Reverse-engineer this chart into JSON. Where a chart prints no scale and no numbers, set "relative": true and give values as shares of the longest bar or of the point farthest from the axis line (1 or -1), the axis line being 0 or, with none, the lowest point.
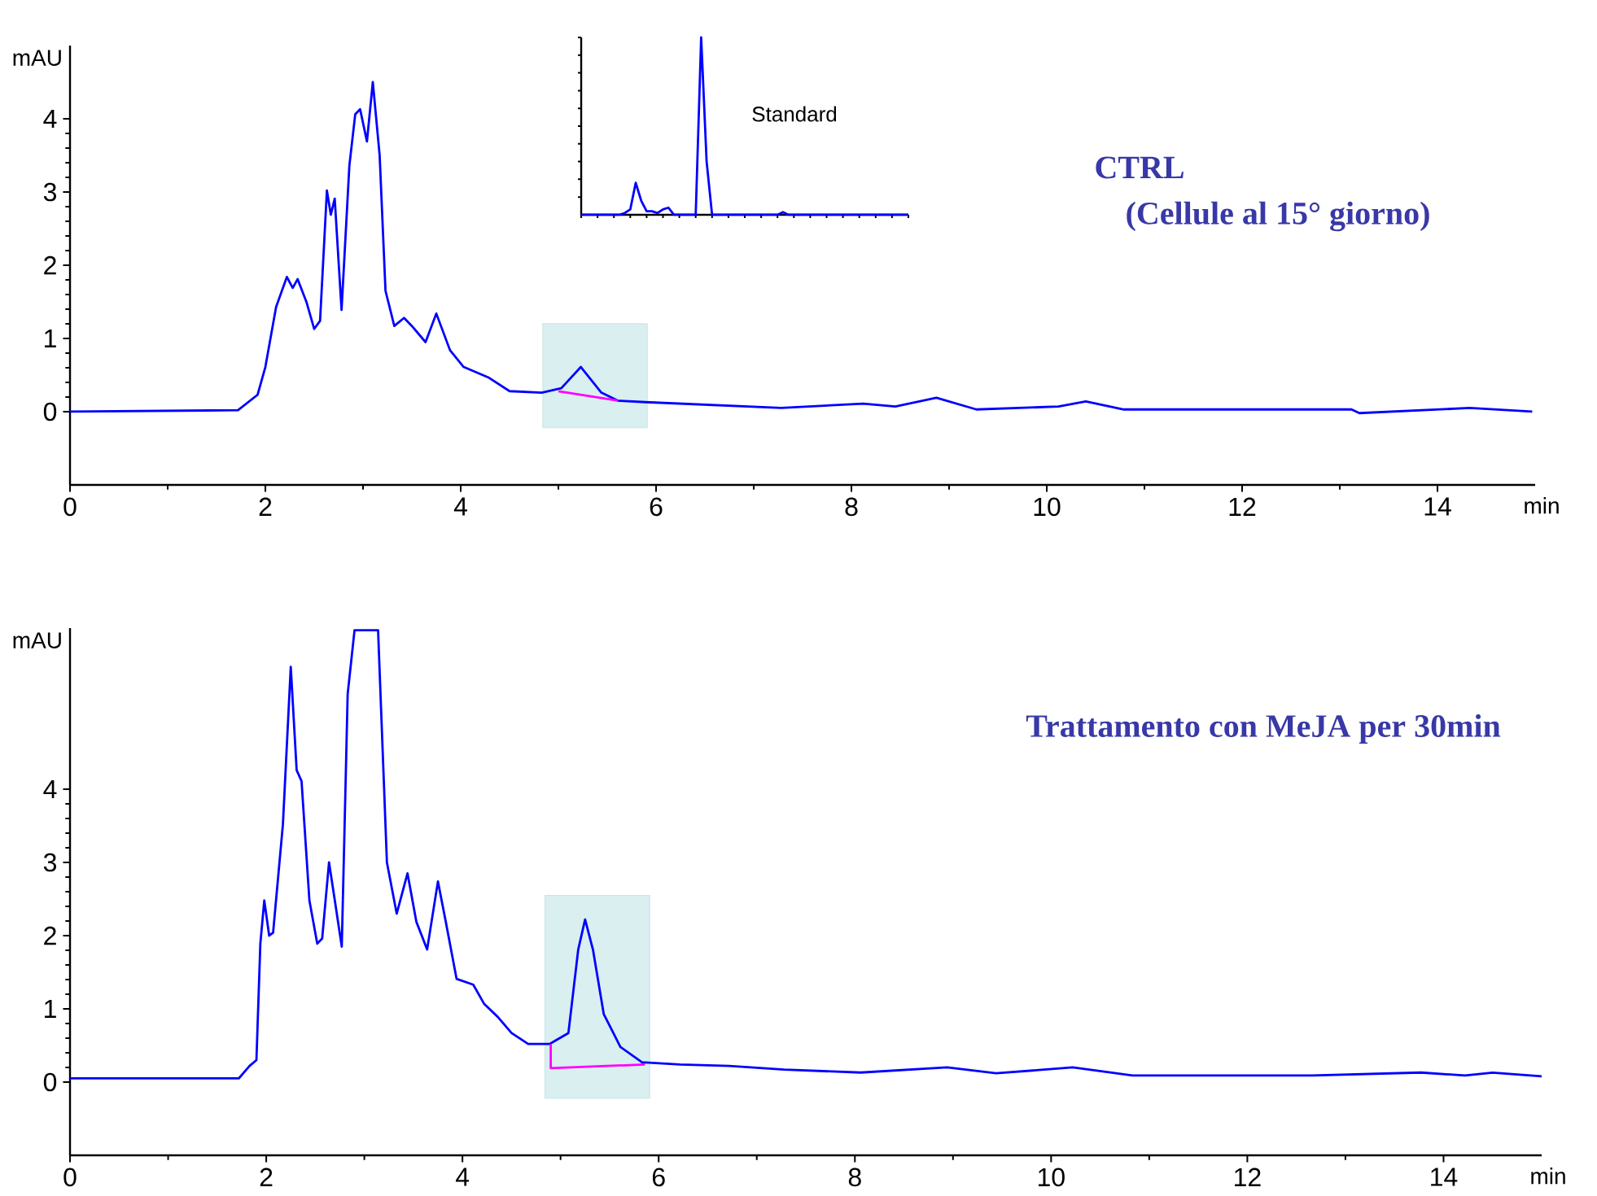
{
  "chart_data": [
    {
      "type": "line",
      "title": "CTRL",
      "subtitle": "(Cellule al 15° giorno)",
      "xlabel": "min",
      "ylabel": "mAU",
      "xlim": [
        0,
        15
      ],
      "ylim": [
        -1,
        5
      ],
      "xticks": [
        0,
        2,
        4,
        6,
        8,
        10,
        12,
        14
      ],
      "yticks": [
        0,
        1,
        2,
        3,
        4
      ],
      "bands": [
        {
          "axis": "x",
          "from": 4.84,
          "to": 5.91,
          "color": "#d9eff0"
        }
      ],
      "series": [
        {
          "color": "#0000ff",
          "x": [
            0,
            1.72,
            1.92,
            2.0,
            2.11,
            2.22,
            2.28,
            2.33,
            2.42,
            2.5,
            2.56,
            2.63,
            2.67,
            2.71,
            2.78,
            2.86,
            2.92,
            2.97,
            3.04,
            3.1,
            3.17,
            3.23,
            3.32,
            3.42,
            3.5,
            3.64,
            3.75,
            3.89,
            4.03,
            4.28,
            4.5,
            4.83,
            5.03,
            5.23,
            5.44,
            5.61,
            5.89,
            7.28,
            8.12,
            8.45,
            8.87,
            9.28,
            10.12,
            10.4,
            10.79,
            13.12,
            13.2,
            14.33,
            14.97
          ],
          "values": [
            0,
            0.02,
            0.23,
            0.61,
            1.43,
            1.84,
            1.69,
            1.81,
            1.5,
            1.13,
            1.24,
            3.02,
            2.69,
            2.91,
            1.39,
            3.36,
            4.06,
            4.13,
            3.69,
            4.5,
            3.5,
            1.65,
            1.17,
            1.28,
            1.17,
            0.95,
            1.34,
            0.84,
            0.61,
            0.47,
            0.28,
            0.26,
            0.32,
            0.61,
            0.26,
            0.15,
            0.13,
            0.05,
            0.11,
            0.07,
            0.19,
            0.03,
            0.07,
            0.14,
            0.03,
            0.03,
            -0.02,
            0.05,
            0.0
          ]
        },
        {
          "color": "#ff00ff",
          "x": [
            5.0,
            5.61
          ],
          "values": [
            0.28,
            0.15
          ]
        }
      ]
    },
    {
      "type": "line",
      "title": "Standard",
      "relative": true,
      "categories": [
        null,
        null,
        null,
        null,
        null,
        null,
        null,
        null,
        null,
        null,
        null,
        null,
        null,
        null,
        null,
        null,
        null,
        null,
        null,
        null,
        null,
        null,
        null,
        null,
        null,
        null,
        null,
        null,
        null,
        null,
        null,
        null,
        null,
        null,
        null,
        null,
        null,
        null,
        null,
        null,
        null,
        null,
        null,
        null,
        null,
        null,
        null,
        null,
        null,
        null,
        null,
        null,
        null,
        null,
        null,
        null,
        null,
        null,
        null,
        null,
        null
      ],
      "series": [
        {
          "color": "#0000ff",
          "values": [
            0,
            0,
            0,
            0,
            0,
            0,
            0,
            0,
            0.01,
            0.03,
            0.18,
            0.08,
            0.02,
            0.02,
            0.01,
            0.03,
            0.04,
            0,
            0,
            0,
            0,
            0,
            1,
            0.3,
            0,
            0,
            0,
            0,
            0,
            0,
            0,
            0,
            0,
            0,
            0,
            0,
            0,
            0.015,
            0,
            0,
            0,
            0,
            0,
            0,
            0,
            0,
            0,
            0,
            0,
            0,
            0,
            0,
            0,
            0,
            0,
            0,
            0,
            0,
            0,
            0,
            0
          ]
        }
      ]
    },
    {
      "type": "line",
      "title": "Trattamento con MeJA per 30min",
      "xlabel": "min",
      "ylabel": "mAU",
      "xlim": [
        0,
        15
      ],
      "ylim": [
        -1,
        6.2
      ],
      "xticks": [
        0,
        2,
        4,
        6,
        8,
        10,
        12,
        14
      ],
      "yticks": [
        0,
        1,
        2,
        3,
        4
      ],
      "bands": [
        {
          "axis": "x",
          "from": 4.84,
          "to": 5.91,
          "color": "#d9eff0"
        }
      ],
      "series": [
        {
          "color": "#0000ff",
          "x": [
            0,
            1.72,
            1.83,
            1.9,
            1.94,
            1.98,
            2.03,
            2.07,
            2.17,
            2.25,
            2.31,
            2.36,
            2.44,
            2.52,
            2.57,
            2.64,
            2.69,
            2.77,
            2.83,
            2.9,
            3.14,
            3.23,
            3.33,
            3.44,
            3.53,
            3.64,
            3.75,
            3.83,
            3.94,
            4.11,
            4.22,
            4.36,
            4.5,
            4.67,
            4.89,
            4.94,
            5.08,
            5.18,
            5.25,
            5.33,
            5.44,
            5.61,
            5.83,
            6.22,
            6.72,
            7.28,
            8.06,
            8.94,
            9.44,
            10.22,
            10.83,
            12.66,
            13.77,
            14.22,
            14.5,
            15.0
          ],
          "values": [
            0.05,
            0.05,
            0.22,
            0.3,
            1.89,
            2.48,
            2.0,
            2.04,
            3.52,
            5.67,
            4.26,
            4.11,
            2.48,
            1.89,
            1.96,
            3.0,
            2.56,
            1.85,
            5.3,
            6.17,
            6.17,
            3.0,
            2.3,
            2.85,
            2.19,
            1.81,
            2.74,
            2.19,
            1.41,
            1.33,
            1.07,
            0.89,
            0.67,
            0.52,
            0.52,
            0.56,
            0.67,
            1.81,
            2.22,
            1.81,
            0.93,
            0.48,
            0.27,
            0.24,
            0.22,
            0.17,
            0.13,
            0.2,
            0.12,
            0.2,
            0.09,
            0.09,
            0.13,
            0.09,
            0.13,
            0.08
          ]
        },
        {
          "color": "#ff00ff",
          "x": [
            4.9,
            4.9,
            5.86
          ],
          "values": [
            0.52,
            0.19,
            0.24
          ]
        }
      ]
    }
  ]
}
